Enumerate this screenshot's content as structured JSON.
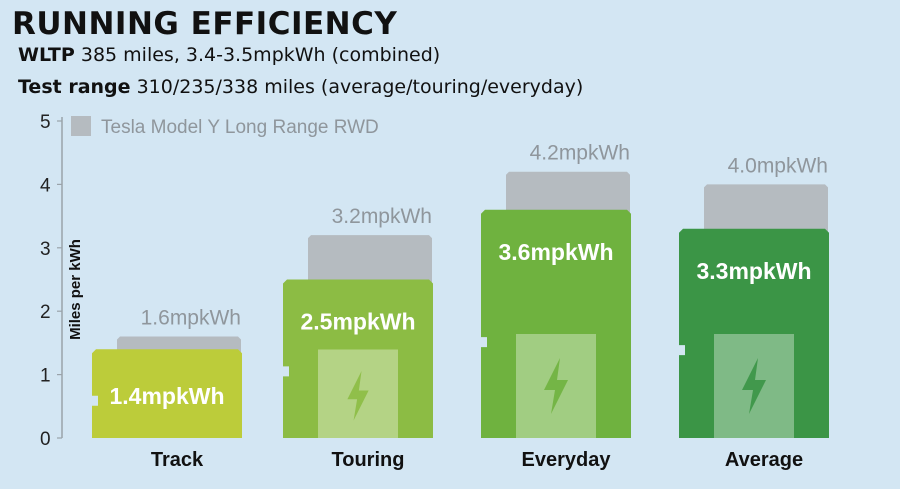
{
  "header": {
    "title": "RUNNING EFFICIENCY",
    "wltp_label": "WLTP",
    "wltp_value": "385 miles, 3.4-3.5mpkWh (combined)",
    "test_label": "Test range",
    "test_value": "310/235/338 miles (average/touring/everyday)"
  },
  "colors": {
    "background": "#d3e6f3",
    "comparison": "#b5bbc0",
    "track": "#bccc3a",
    "touring": "#8cbc44",
    "everyday": "#6fb23f",
    "average": "#3b9546"
  },
  "chart_data": {
    "type": "bar",
    "title": "RUNNING EFFICIENCY",
    "ylabel": "Miles per kWh",
    "ylim": [
      0,
      5
    ],
    "yticks": [
      "0",
      "1",
      "2",
      "3",
      "4",
      "5"
    ],
    "categories": [
      "Track",
      "Touring",
      "Everyday",
      "Average"
    ],
    "series": [
      {
        "name": "Tesla Model Y Long Range RWD",
        "values": [
          1.6,
          3.2,
          4.2,
          4.0
        ],
        "labels": [
          "1.6mpkWh",
          "3.2mpkWh",
          "4.2mpkWh",
          "4.0mpkWh"
        ]
      },
      {
        "values": [
          1.4,
          2.5,
          3.6,
          3.3
        ],
        "labels": [
          "1.4mpkWh",
          "2.5mpkWh",
          "3.6mpkWh",
          "3.3mpkWh"
        ]
      }
    ],
    "legend_position": "top-left",
    "grid": false
  }
}
